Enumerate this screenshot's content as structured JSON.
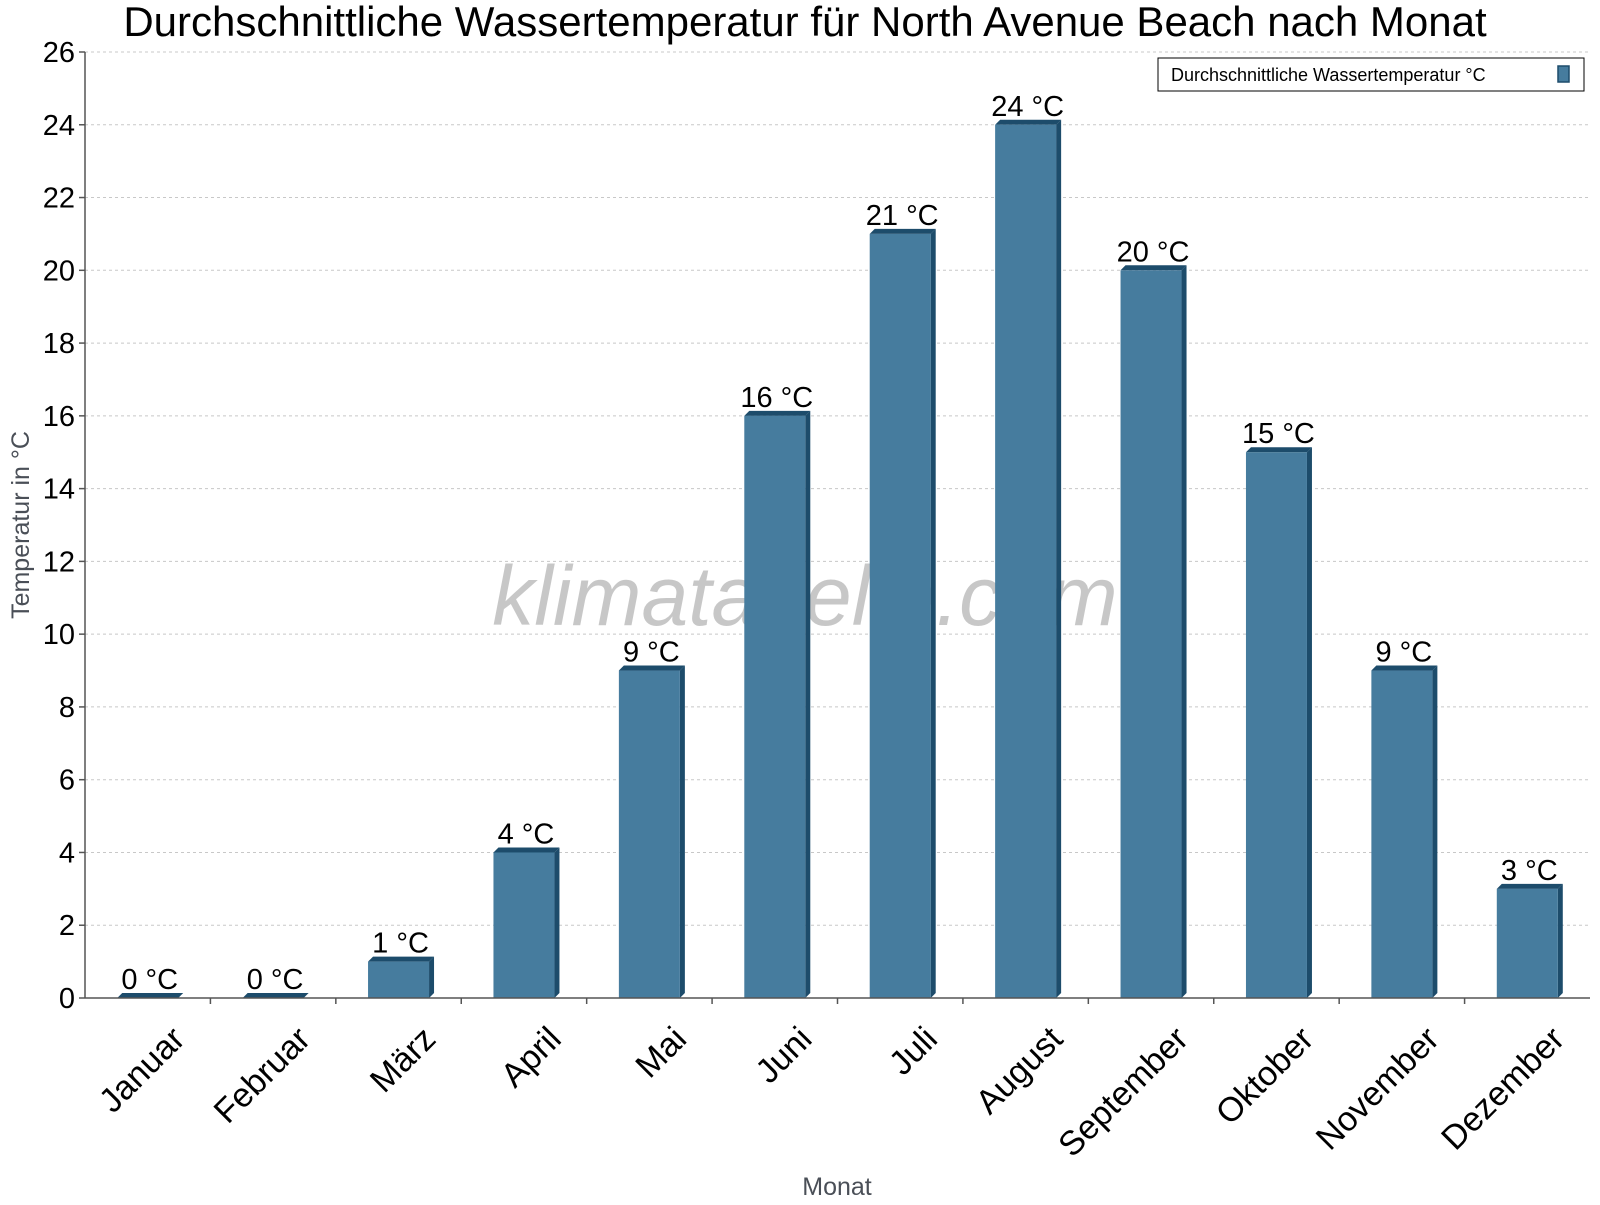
{
  "chart_data": {
    "type": "bar",
    "title": "Durchschnittliche Wassertemperatur für North Avenue Beach nach Monat",
    "xlabel": "Monat",
    "ylabel": "Temperatur in °C",
    "categories": [
      "Januar",
      "Februar",
      "März",
      "April",
      "Mai",
      "Juni",
      "Juli",
      "August",
      "September",
      "Oktober",
      "November",
      "Dezember"
    ],
    "series": [
      {
        "name": "Durchschnittliche Wassertemperatur °C",
        "values": [
          0,
          0,
          1,
          4,
          9,
          16,
          21,
          24,
          20,
          15,
          9,
          3
        ],
        "labels": [
          "0 °C",
          "0 °C",
          "1 °C",
          "4 °C",
          "9 °C",
          "16 °C",
          "21 °C",
          "24 °C",
          "20 °C",
          "15 °C",
          "9 °C",
          "3 °C"
        ],
        "color": "#467c9e",
        "side_color": "#1d4c6b"
      }
    ],
    "ylim": [
      0,
      26
    ],
    "yticks": [
      0,
      2,
      4,
      6,
      8,
      10,
      12,
      14,
      16,
      18,
      20,
      22,
      24,
      26
    ],
    "grid": true,
    "legend_position": "top-right"
  },
  "watermark": "klimatabelle.com"
}
